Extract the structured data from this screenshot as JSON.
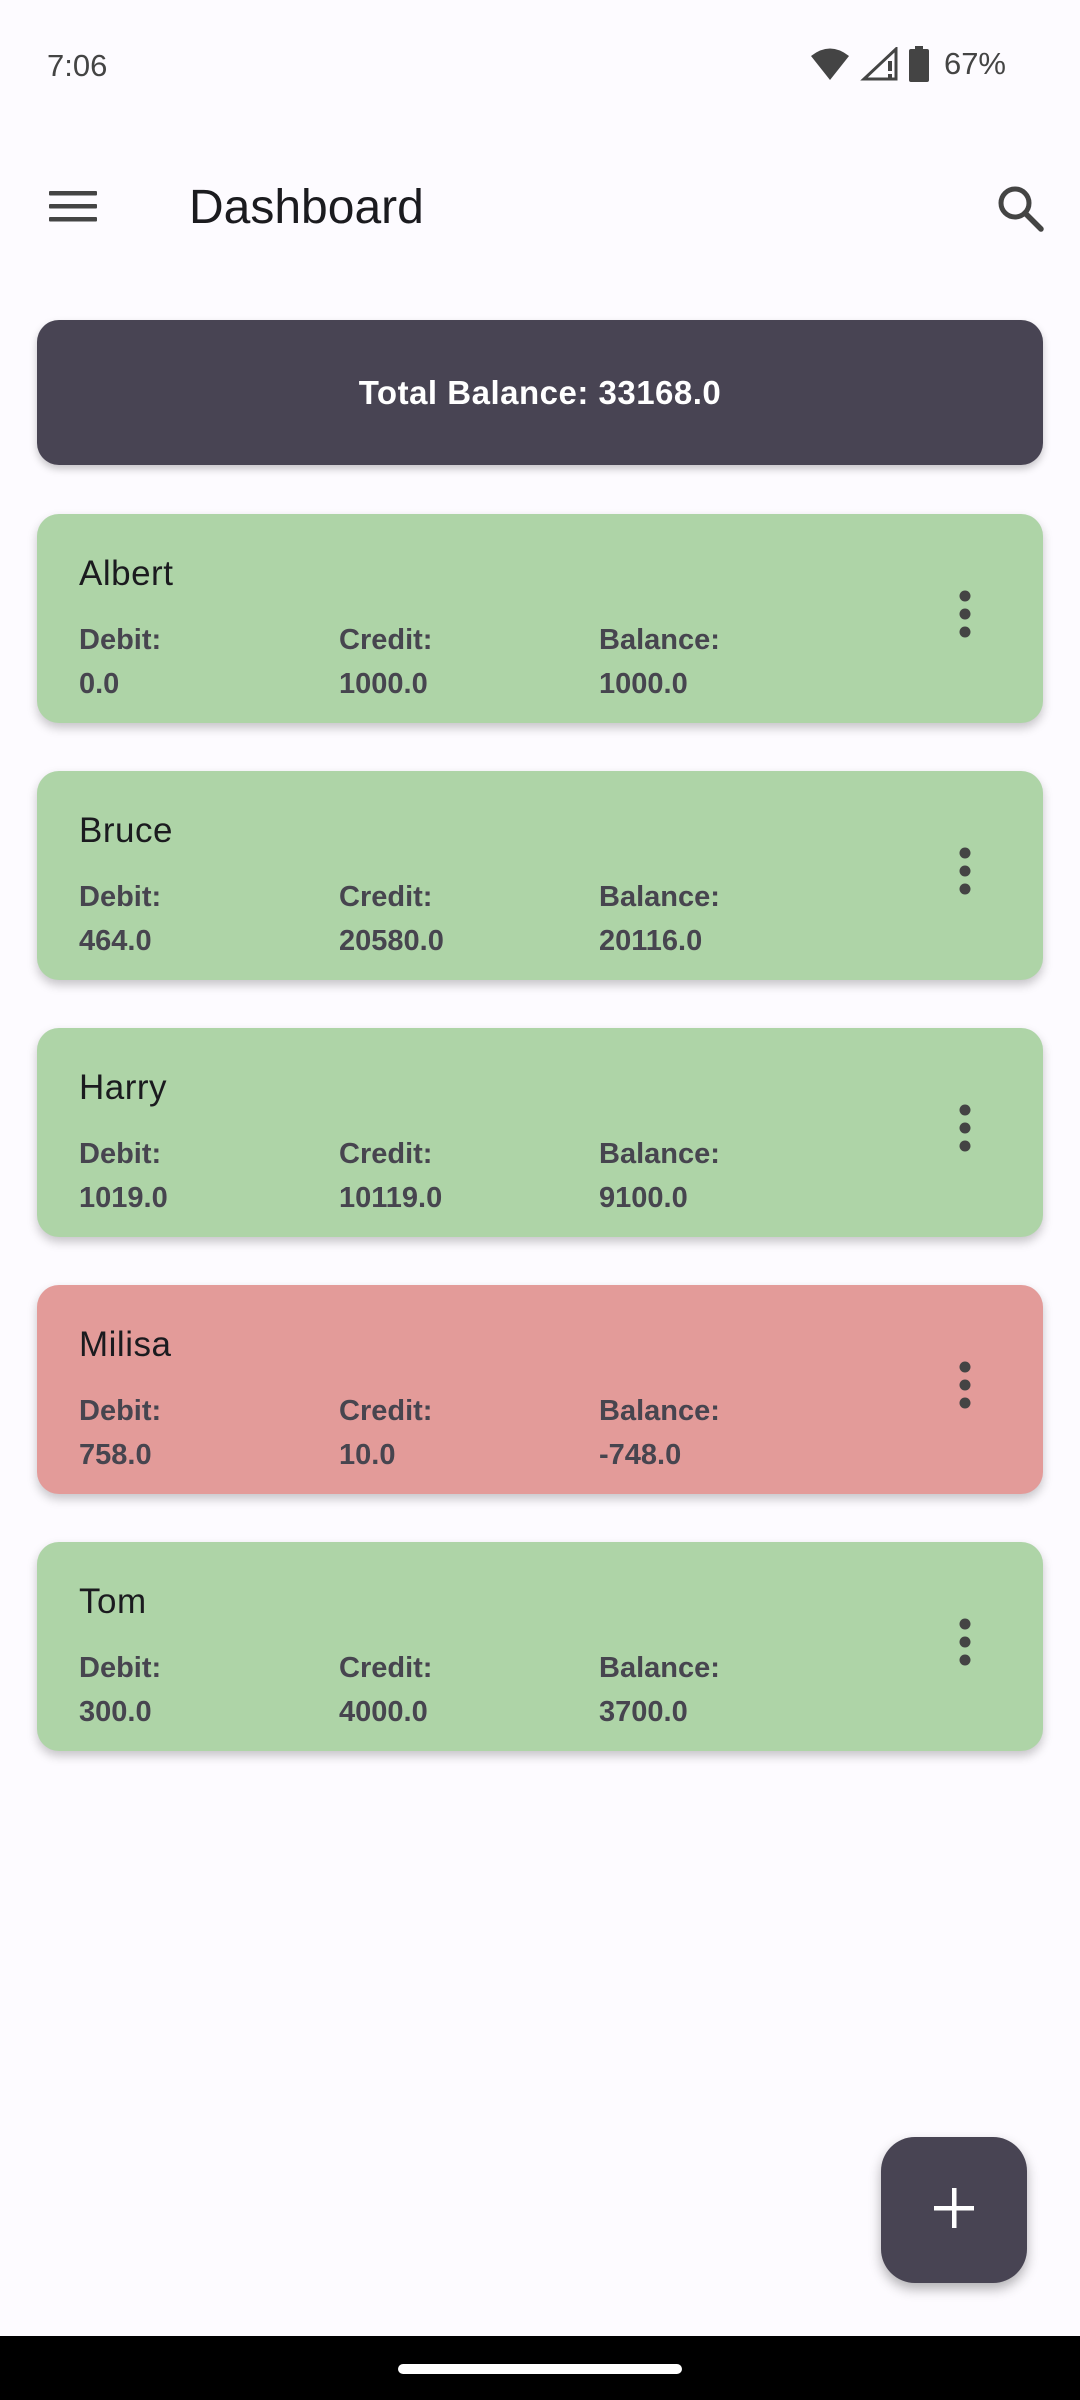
{
  "status_bar": {
    "time": "7:06",
    "battery": "67%",
    "icons": [
      "wifi-icon",
      "cell-signal-icon",
      "battery-icon"
    ]
  },
  "app_bar": {
    "title": "Dashboard",
    "menu_icon": "hamburger-menu-icon",
    "search_icon": "search-icon"
  },
  "summary": {
    "total_label": "Total Balance: 33168.0"
  },
  "colors": {
    "positive_card": "#aed4a7",
    "negative_card": "#e39b99",
    "dark_accent": "#484453"
  },
  "people": [
    {
      "name": "Albert",
      "debit_label": "Debit:",
      "debit": "0.0",
      "credit_label": "Credit:",
      "credit": "1000.0",
      "balance_label": "Balance:",
      "balance": "1000.0",
      "status": "positive"
    },
    {
      "name": "Bruce",
      "debit_label": "Debit:",
      "debit": "464.0",
      "credit_label": "Credit:",
      "credit": "20580.0",
      "balance_label": "Balance:",
      "balance": "20116.0",
      "status": "positive"
    },
    {
      "name": "Harry",
      "debit_label": "Debit:",
      "debit": "1019.0",
      "credit_label": "Credit:",
      "credit": "10119.0",
      "balance_label": "Balance:",
      "balance": "9100.0",
      "status": "positive"
    },
    {
      "name": "Milisa",
      "debit_label": "Debit:",
      "debit": "758.0",
      "credit_label": "Credit:",
      "credit": "10.0",
      "balance_label": "Balance:",
      "balance": "-748.0",
      "status": "negative"
    },
    {
      "name": "Tom",
      "debit_label": "Debit:",
      "debit": "300.0",
      "credit_label": "Credit:",
      "credit": "4000.0",
      "balance_label": "Balance:",
      "balance": "3700.0",
      "status": "positive"
    }
  ],
  "fab": {
    "icon": "plus-icon"
  }
}
